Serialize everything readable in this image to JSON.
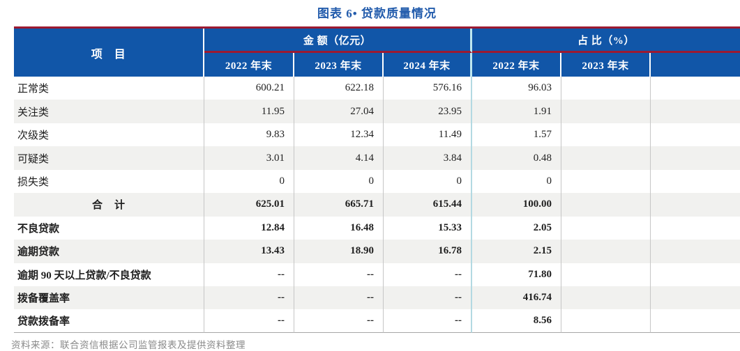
{
  "title": "图表 6• 贷款质量情况",
  "table": {
    "item_header": "项　目",
    "amount_group_label": "金 额（亿元）",
    "ratio_group_label": "占 比（%）",
    "year_headers": [
      "2022 年末",
      "2023 年末",
      "2024 年末",
      "2022 年末",
      "2023 年末",
      ""
    ],
    "rows": [
      {
        "label": "正常类",
        "bold": false,
        "center": false,
        "values": [
          "600.21",
          "622.18",
          "576.16",
          "96.03",
          "",
          ""
        ]
      },
      {
        "label": "关注类",
        "bold": false,
        "center": false,
        "values": [
          "11.95",
          "27.04",
          "23.95",
          "1.91",
          "",
          ""
        ]
      },
      {
        "label": "次级类",
        "bold": false,
        "center": false,
        "values": [
          "9.83",
          "12.34",
          "11.49",
          "1.57",
          "",
          ""
        ]
      },
      {
        "label": "可疑类",
        "bold": false,
        "center": false,
        "values": [
          "3.01",
          "4.14",
          "3.84",
          "0.48",
          "",
          ""
        ]
      },
      {
        "label": "损失类",
        "bold": false,
        "center": false,
        "values": [
          "0",
          "0",
          "0",
          "0",
          "",
          ""
        ]
      },
      {
        "label": "合　计",
        "bold": true,
        "center": true,
        "values": [
          "625.01",
          "665.71",
          "615.44",
          "100.00",
          "",
          ""
        ]
      },
      {
        "label": "不良贷款",
        "bold": true,
        "center": false,
        "values": [
          "12.84",
          "16.48",
          "15.33",
          "2.05",
          "",
          ""
        ]
      },
      {
        "label": "逾期贷款",
        "bold": true,
        "center": false,
        "values": [
          "13.43",
          "18.90",
          "16.78",
          "2.15",
          "",
          ""
        ]
      },
      {
        "label": "逾期 90 天以上贷款/不良贷款",
        "bold": true,
        "center": false,
        "values": [
          "--",
          "--",
          "--",
          "71.80",
          "",
          ""
        ]
      },
      {
        "label": "拨备覆盖率",
        "bold": true,
        "center": false,
        "values": [
          "--",
          "--",
          "--",
          "416.74",
          "",
          ""
        ]
      },
      {
        "label": "贷款拨备率",
        "bold": true,
        "center": false,
        "values": [
          "--",
          "--",
          "--",
          "8.56",
          "",
          ""
        ]
      }
    ]
  },
  "footer_source": "资料来源：联合资信根据公司监管报表及提供资料整理",
  "colors": {
    "header_bg": "#1156a8",
    "accent_red": "#9c1a31",
    "divider_cyan": "#bfe7ef",
    "row_stripe": "#f1f1ef",
    "title_blue": "#235cac"
  }
}
